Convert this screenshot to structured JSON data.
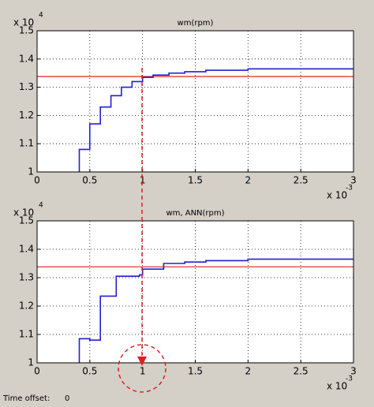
{
  "chart_data": [
    {
      "type": "line",
      "title": "wm(rpm)",
      "y_exponent": {
        "base": "x 10",
        "exponent": "4"
      },
      "x_exponent": {
        "base": "x 10",
        "exponent": "-3"
      },
      "x": [
        0.4,
        0.4,
        0.5,
        0.5,
        0.6,
        0.6,
        0.7,
        0.7,
        0.8,
        0.8,
        0.9,
        0.9,
        1.0,
        1.0,
        1.1,
        1.1,
        1.25,
        1.25,
        1.4,
        1.4,
        1.6,
        1.6,
        2.0,
        2.0,
        3
      ],
      "series": [
        {
          "color": "#2020d0",
          "values": [
            1,
            1.08,
            1.08,
            1.17,
            1.17,
            1.23,
            1.23,
            1.27,
            1.27,
            1.3,
            1.3,
            1.32,
            1.32,
            1.335,
            1.335,
            1.343,
            1.343,
            1.35,
            1.35,
            1.355,
            1.355,
            1.36,
            1.36,
            1.365,
            1.365
          ]
        }
      ],
      "hlines": [
        {
          "value": 1.338,
          "color": "#e02020"
        }
      ],
      "xlim": [
        0,
        3
      ],
      "ylim": [
        1,
        1.5
      ],
      "xticks": [
        0,
        0.5,
        1,
        1.5,
        2,
        2.5,
        3
      ],
      "yticks": [
        1,
        1.1,
        1.2,
        1.3,
        1.4,
        1.5
      ],
      "grid": true
    },
    {
      "type": "line",
      "title": "wm, ANN(rpm)",
      "y_exponent": {
        "base": "x 10",
        "exponent": "4"
      },
      "x_exponent": {
        "base": "x 10",
        "exponent": "-3"
      },
      "x": [
        0.4,
        0.4,
        0.5,
        0.5,
        0.6,
        0.6,
        0.75,
        0.75,
        0.97,
        0.97,
        1.0,
        1.0,
        1.2,
        1.2,
        1.4,
        1.4,
        1.6,
        1.6,
        2.0,
        2.0,
        3
      ],
      "series": [
        {
          "color": "#2020d0",
          "values": [
            1,
            1.085,
            1.085,
            1.08,
            1.08,
            1.235,
            1.235,
            1.305,
            1.305,
            1.31,
            1.31,
            1.33,
            1.33,
            1.35,
            1.35,
            1.355,
            1.355,
            1.36,
            1.36,
            1.365,
            1.365
          ]
        }
      ],
      "hlines": [
        {
          "value": 1.338,
          "color": "#e02020"
        }
      ],
      "xlim": [
        0,
        3
      ],
      "ylim": [
        1,
        1.5
      ],
      "xticks": [
        0,
        0.5,
        1,
        1.5,
        2,
        2.5,
        3
      ],
      "yticks": [
        1,
        1.1,
        1.2,
        1.3,
        1.4,
        1.5
      ],
      "grid": true
    }
  ],
  "footer": {
    "label": "Time offset:",
    "value": "0"
  }
}
